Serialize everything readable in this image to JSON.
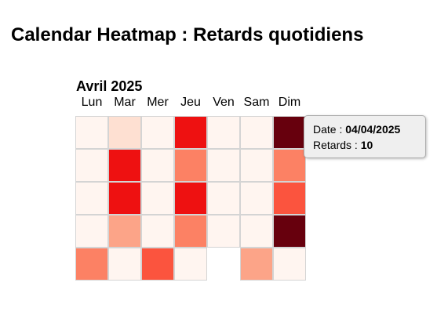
{
  "page": {
    "title": "Calendar Heatmap : Retards quotidiens"
  },
  "chart_data": {
    "type": "heatmap",
    "month_label": "Avril 2025",
    "weekdays": [
      "Lun",
      "Mar",
      "Mer",
      "Jeu",
      "Ven",
      "Sam",
      "Dim"
    ],
    "value_label": "Retards",
    "vmin": 0,
    "vmax": 10,
    "colormap": "Reds",
    "weeks": [
      [
        0,
        1,
        0,
        7,
        0,
        0,
        10
      ],
      [
        0,
        7,
        0,
        4,
        0,
        0,
        4
      ],
      [
        0,
        7,
        0,
        7,
        0,
        0,
        5
      ],
      [
        0,
        3,
        0,
        4,
        0,
        0,
        10
      ],
      [
        4,
        0,
        5,
        0,
        null,
        3,
        0
      ]
    ]
  },
  "tooltip": {
    "date_label": "Date : ",
    "date_value": "04/04/2025",
    "retards_label": "Retards : ",
    "retards_value": "10"
  }
}
